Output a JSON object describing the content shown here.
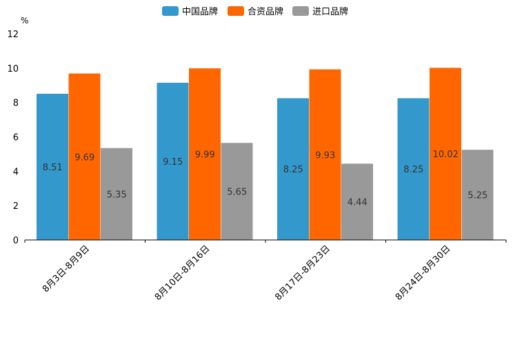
{
  "chart_data": {
    "type": "bar",
    "unit": "%",
    "categories": [
      "8月3日-8月9日",
      "8月10日-8月16日",
      "8月17日-8月23日",
      "8月24日-8月30日"
    ],
    "series": [
      {
        "name": "中国品牌",
        "color": "#3399cc",
        "values": [
          8.51,
          9.15,
          8.25,
          8.25
        ],
        "labels": [
          "8.51",
          "9.15",
          "8.25",
          "8.25"
        ]
      },
      {
        "name": "合资品牌",
        "color": "#ff6600",
        "values": [
          9.69,
          9.99,
          9.93,
          10.02
        ],
        "labels": [
          "9.69",
          "9.99",
          "9.93",
          "10.02"
        ]
      },
      {
        "name": "进口品牌",
        "color": "#999999",
        "values": [
          5.35,
          5.65,
          4.44,
          5.25
        ],
        "labels": [
          "5.35",
          "5.65",
          "4.44",
          "5.25"
        ]
      }
    ],
    "yticks": [
      "0",
      "2",
      "4",
      "6",
      "8",
      "10",
      "12"
    ],
    "ylim": [
      0,
      12
    ],
    "legend_position": "top-center",
    "grid": false
  }
}
